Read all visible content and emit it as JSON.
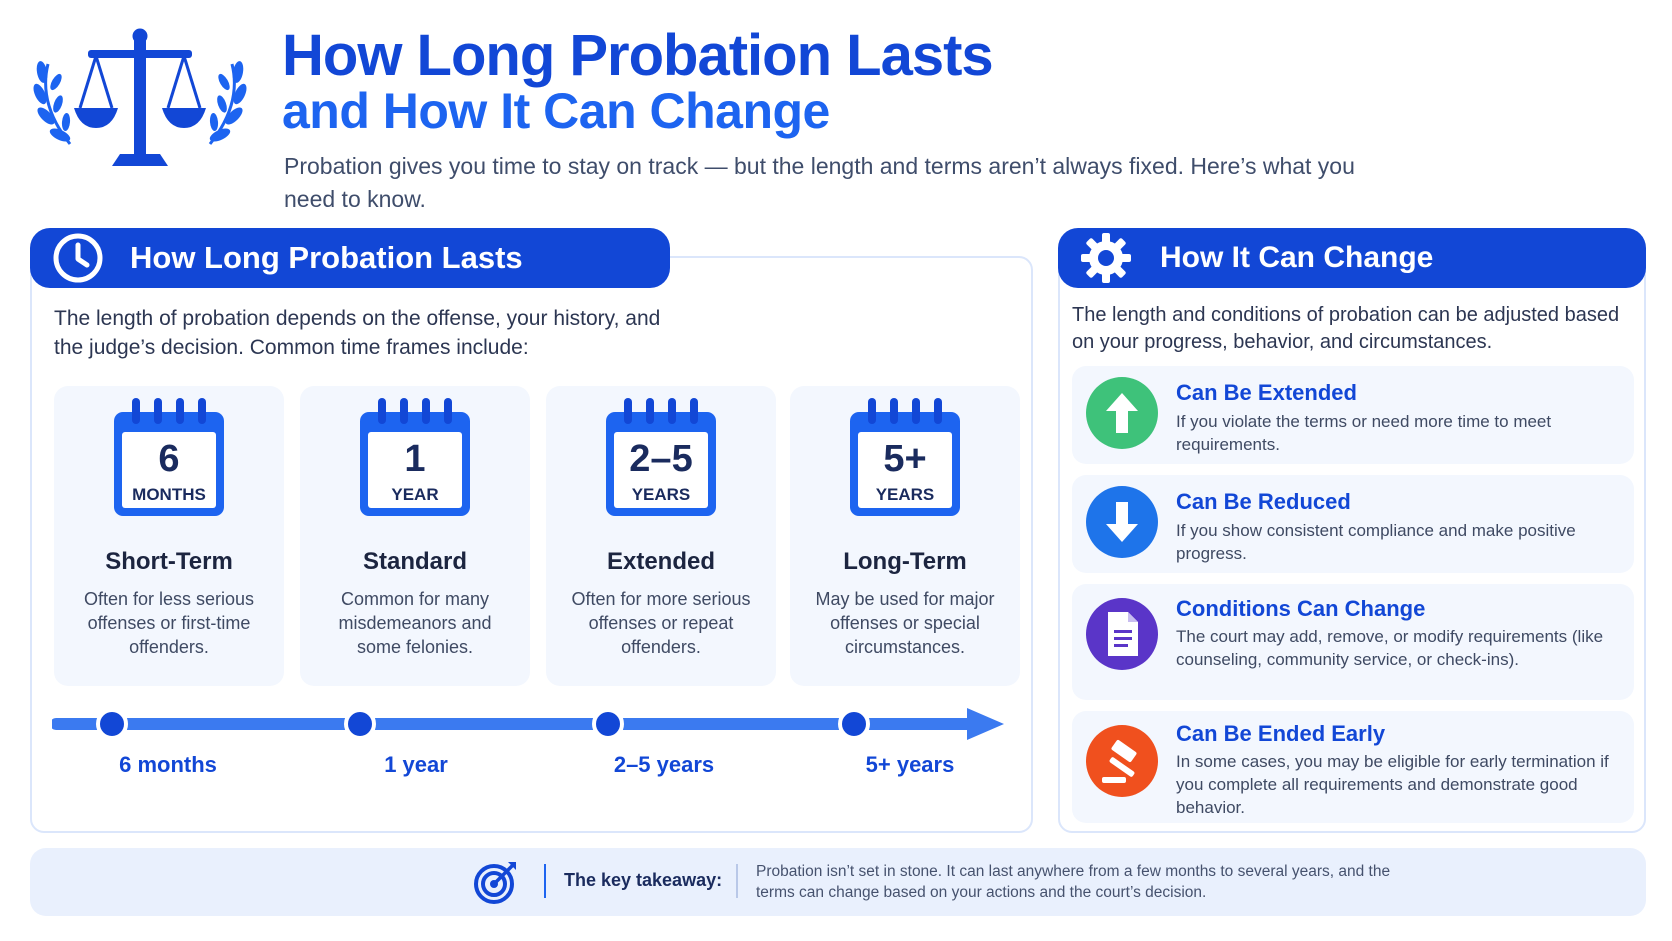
{
  "header": {
    "title_line1": "How Long Probation Lasts",
    "title_line2": "and How It Can Change",
    "subtitle": "Probation gives you time to stay on track — but the length and terms aren’t always fixed. Here’s what you need to know.",
    "logo_icon": "scales-of-justice-with-laurel-icon"
  },
  "left": {
    "header": "How Long Probation Lasts",
    "header_icon": "clock-icon",
    "intro": "The length of probation depends on the offense, your history, and the judge’s decision. Common time frames include:",
    "timeframes": [
      {
        "num": "6",
        "unit": "MONTHS",
        "title": "Short-Term",
        "desc": "Often for less serious offenses or first-time offenders."
      },
      {
        "num": "1",
        "unit": "YEAR",
        "title": "Standard",
        "desc": "Common for many misdemeanors and some felonies."
      },
      {
        "num": "2–5",
        "unit": "YEARS",
        "title": "Extended",
        "desc": "Often for more serious offenses or repeat offenders."
      },
      {
        "num": "5+",
        "unit": "YEARS",
        "title": "Long-Term",
        "desc": "May be used for major offenses or special circumstances."
      }
    ],
    "timeline": [
      "6 months",
      "1 year",
      "2–5 years",
      "5+ years"
    ]
  },
  "right": {
    "header": "How It Can Change",
    "header_icon": "gear-icon",
    "intro": "The length and conditions of probation can be adjusted based on your progress, behavior, and circumstances.",
    "changes": [
      {
        "title": "Can Be Extended",
        "desc": "If you violate the terms or need more time to meet requirements.",
        "icon": "arrow-up-icon",
        "color": "#3ec27a"
      },
      {
        "title": "Can Be Reduced",
        "desc": "If you show consistent compliance and make positive progress.",
        "icon": "arrow-down-icon",
        "color": "#1e74ea"
      },
      {
        "title": "Conditions Can Change",
        "desc": "The court may add, remove, or modify requirements (like counseling, community service, or check-ins).",
        "icon": "document-icon",
        "color": "#5a35c8"
      },
      {
        "title": "Can Be Ended Early",
        "desc": "In some cases, you may be eligible for early termination if you complete all requirements and demonstrate good behavior.",
        "icon": "gavel-icon",
        "color": "#f0501e"
      }
    ]
  },
  "footer": {
    "icon": "target-icon",
    "label": "The key takeaway:",
    "text": "Probation isn’t set in stone. It can last anywhere from a few months to several years, and the terms can change based on your actions and the court’s decision."
  },
  "colors": {
    "primary": "#1247d6",
    "accent": "#1d64f0",
    "card_bg": "#f3f7fe"
  }
}
